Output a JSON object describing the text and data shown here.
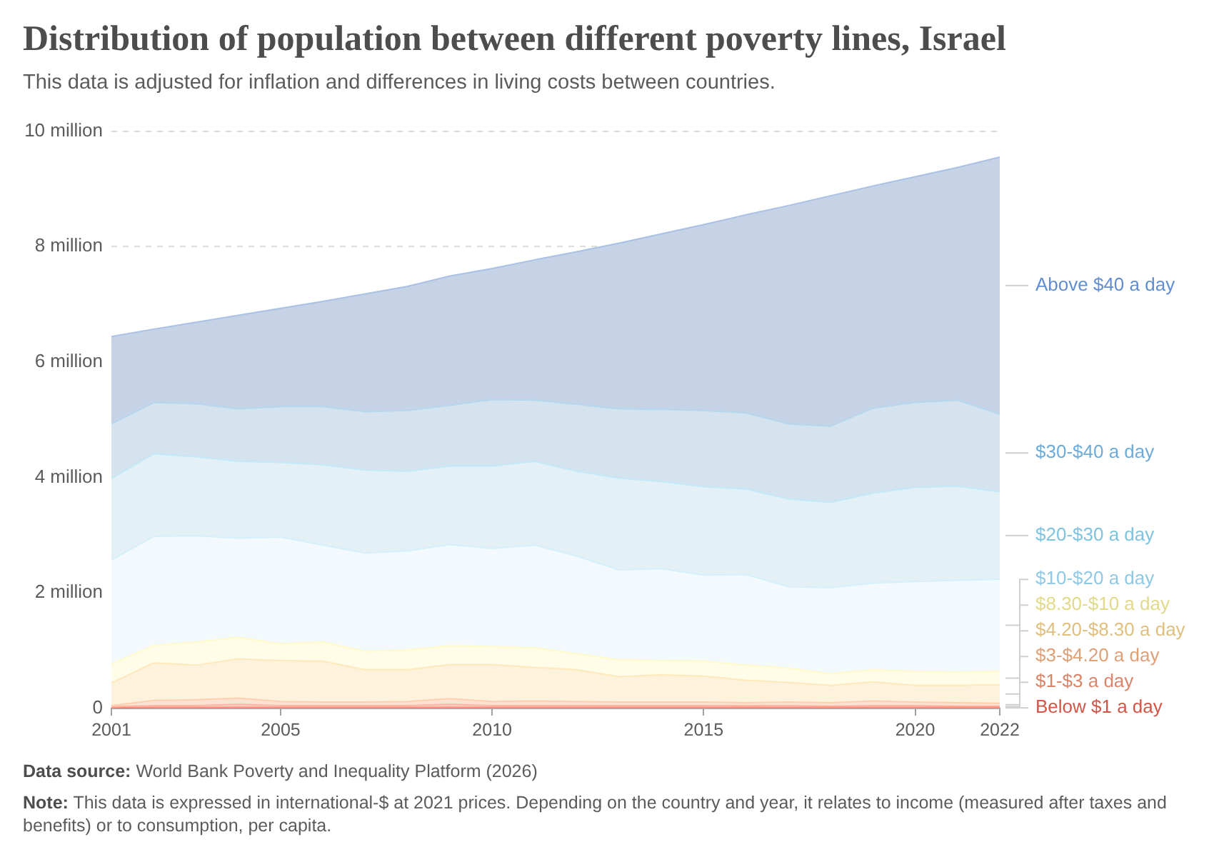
{
  "chart_data": {
    "type": "area",
    "stacked": true,
    "title": "Distribution of population between different poverty lines, Israel",
    "subtitle": "This data is adjusted for inflation and differences in living costs between countries.",
    "x": [
      2001,
      2002,
      2003,
      2004,
      2005,
      2006,
      2007,
      2008,
      2009,
      2010,
      2011,
      2012,
      2013,
      2014,
      2015,
      2016,
      2017,
      2018,
      2019,
      2020,
      2021,
      2022
    ],
    "series": [
      {
        "name": "Below $1 a day",
        "color": "#f2aaa2",
        "values": [
          0.01,
          0.02,
          0.02,
          0.02,
          0.02,
          0.02,
          0.02,
          0.02,
          0.02,
          0.02,
          0.02,
          0.02,
          0.02,
          0.02,
          0.02,
          0.02,
          0.02,
          0.02,
          0.02,
          0.02,
          0.02,
          0.02
        ]
      },
      {
        "name": "$1-$3 a day",
        "color": "#f8d2c6",
        "values": [
          0.02,
          0.03,
          0.03,
          0.05,
          0.03,
          0.03,
          0.03,
          0.03,
          0.05,
          0.03,
          0.03,
          0.03,
          0.03,
          0.03,
          0.03,
          0.03,
          0.03,
          0.02,
          0.03,
          0.03,
          0.02,
          0.02
        ]
      },
      {
        "name": "$3-$4.20 a day",
        "color": "#fbe3d3",
        "values": [
          0.02,
          0.09,
          0.1,
          0.11,
          0.07,
          0.06,
          0.06,
          0.07,
          0.1,
          0.07,
          0.08,
          0.07,
          0.06,
          0.06,
          0.06,
          0.05,
          0.06,
          0.06,
          0.08,
          0.06,
          0.06,
          0.05
        ]
      },
      {
        "name": "$4.20-$8.30 a day",
        "color": "#fdf2dc",
        "values": [
          0.39,
          0.65,
          0.6,
          0.68,
          0.71,
          0.71,
          0.56,
          0.55,
          0.59,
          0.64,
          0.58,
          0.55,
          0.44,
          0.47,
          0.45,
          0.39,
          0.34,
          0.3,
          0.33,
          0.29,
          0.3,
          0.32
        ]
      },
      {
        "name": "$8.30-$10 a day",
        "color": "#fffde8",
        "values": [
          0.33,
          0.3,
          0.4,
          0.37,
          0.29,
          0.33,
          0.32,
          0.34,
          0.33,
          0.31,
          0.34,
          0.28,
          0.29,
          0.25,
          0.26,
          0.26,
          0.25,
          0.2,
          0.21,
          0.24,
          0.23,
          0.23
        ]
      },
      {
        "name": "$10-$20 a day",
        "color": "#f3f9fc",
        "values": [
          1.8,
          1.89,
          1.84,
          1.72,
          1.85,
          1.68,
          1.7,
          1.72,
          1.75,
          1.7,
          1.78,
          1.69,
          1.56,
          1.59,
          1.49,
          1.57,
          1.41,
          1.49,
          1.5,
          1.56,
          1.59,
          1.6
        ]
      },
      {
        "name": "$20-$30 a day",
        "color": "#e3f1f7",
        "values": [
          1.41,
          1.43,
          1.37,
          1.33,
          1.29,
          1.39,
          1.44,
          1.38,
          1.36,
          1.43,
          1.45,
          1.47,
          1.59,
          1.51,
          1.53,
          1.48,
          1.52,
          1.48,
          1.56,
          1.63,
          1.63,
          1.51
        ]
      },
      {
        "name": "$30-$40 a day",
        "color": "#d4e3ee",
        "values": [
          0.95,
          0.89,
          0.92,
          0.91,
          0.97,
          1.01,
          1.01,
          1.05,
          1.05,
          1.15,
          1.06,
          1.16,
          1.2,
          1.25,
          1.32,
          1.32,
          1.3,
          1.32,
          1.47,
          1.47,
          1.49,
          1.35
        ]
      },
      {
        "name": "Above $40 a day",
        "color": "#c6d3e6",
        "values": [
          1.51,
          1.27,
          1.41,
          1.62,
          1.7,
          1.82,
          2.04,
          2.15,
          2.24,
          2.27,
          2.43,
          2.64,
          2.87,
          3.04,
          3.22,
          3.43,
          3.78,
          3.99,
          3.85,
          3.91,
          4.03,
          4.45
        ]
      }
    ],
    "xlim": [
      2001,
      2022
    ],
    "xticks": [
      2001,
      2005,
      2010,
      2015,
      2020,
      2022
    ],
    "ylim": [
      0,
      10
    ],
    "yticks": [
      0,
      {
        "value": 2,
        "label": "2 million"
      },
      {
        "value": 4,
        "label": "4 million"
      },
      {
        "value": 6,
        "label": "6 million"
      },
      {
        "value": 8,
        "label": "8 million"
      },
      {
        "value": 10,
        "label": "10 million"
      }
    ],
    "grid": "y",
    "legend": "right",
    "annotations": [
      "Data source: World Bank Poverty and Inequality Platform (2026)",
      "Note: This data is expressed in international-$ at 2021 prices. Depending on the country and year, it relates to income (measured after taxes and benefits) or to consumption, per capita."
    ]
  }
}
